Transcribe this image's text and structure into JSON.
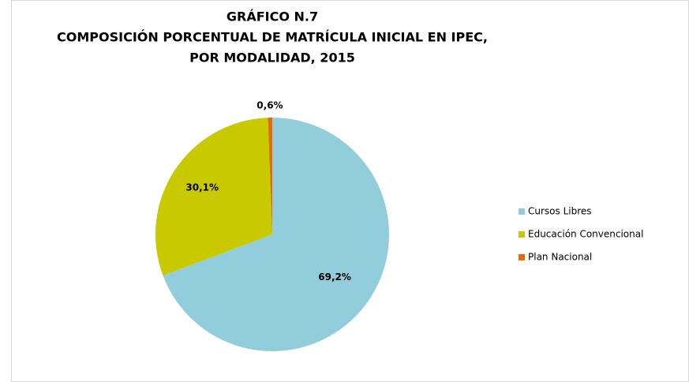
{
  "chart_data": {
    "type": "pie",
    "title": [
      "GRÁFICO N.7",
      "COMPOSICIÓN PORCENTUAL DE MATRÍCULA INICIAL EN IPEC,",
      "POR MODALIDAD, 2015"
    ],
    "categories": [
      "Cursos Libres",
      "Educación Convencional",
      "Plan Nacional"
    ],
    "values": [
      69.2,
      30.1,
      0.6
    ],
    "value_labels": [
      "69,2%",
      "30,1%",
      "0,6%"
    ],
    "colors": [
      "#92cddc",
      "#c9c900",
      "#e36c09"
    ],
    "legend": "right"
  }
}
